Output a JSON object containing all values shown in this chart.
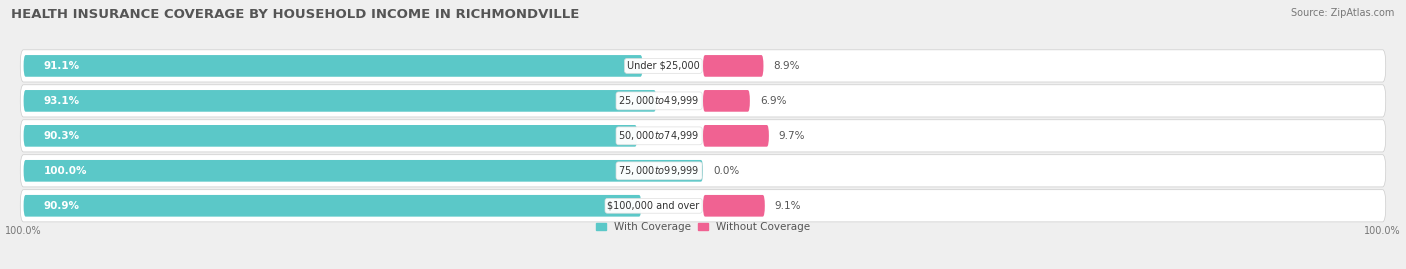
{
  "title": "HEALTH INSURANCE COVERAGE BY HOUSEHOLD INCOME IN RICHMONDVILLE",
  "source": "Source: ZipAtlas.com",
  "categories": [
    "Under $25,000",
    "$25,000 to $49,999",
    "$50,000 to $74,999",
    "$75,000 to $99,999",
    "$100,000 and over"
  ],
  "with_coverage": [
    91.1,
    93.1,
    90.3,
    100.0,
    90.9
  ],
  "without_coverage": [
    8.9,
    6.9,
    9.7,
    0.0,
    9.1
  ],
  "color_coverage": "#5bc8c8",
  "color_coverage_dark": "#3ab0b0",
  "color_without": "#f06292",
  "color_without_light": "#f8bbd0",
  "color_without_row4": "#f3a8c4",
  "bar_height": 0.62,
  "background_color": "#efefef",
  "row_bg_color": "#e8e8e8",
  "title_fontsize": 9.5,
  "source_fontsize": 7,
  "label_fontsize": 7.5,
  "cat_fontsize": 7.0,
  "axis_label_fontsize": 7,
  "legend_fontsize": 7.5,
  "xlim_left": -105,
  "xlim_right": 105
}
